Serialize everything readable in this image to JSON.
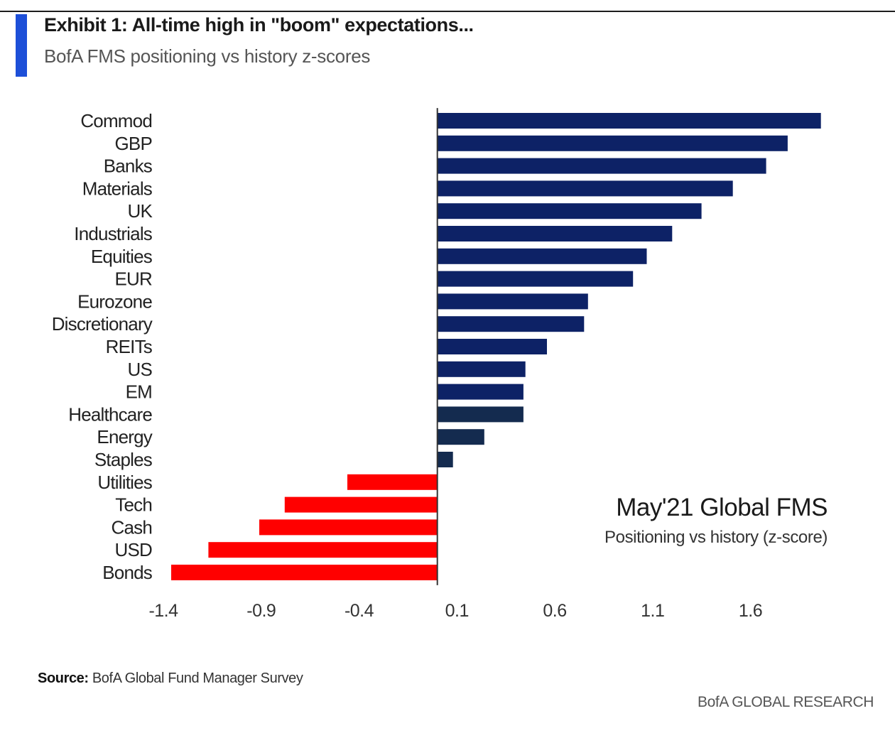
{
  "header": {
    "title": "Exhibit 1: All-time high in \"boom\" expectations...",
    "subtitle": "BofA FMS positioning vs history z-scores"
  },
  "annotation": {
    "title": "May'21 Global FMS",
    "subtitle": "Positioning vs history (z-score)"
  },
  "footer": {
    "source_label": "Source:",
    "source_text": "BofA Global Fund Manager Survey",
    "brand": "BofA GLOBAL RESEARCH"
  },
  "colors": {
    "positive": "#0d2266",
    "positive_dark": "#142b4f",
    "negative": "#ff0000",
    "accent": "#1d4fd8"
  },
  "chart_data": {
    "type": "bar",
    "orientation": "horizontal",
    "categories": [
      "Commod",
      "GBP",
      "Banks",
      "Materials",
      "UK",
      "Industrials",
      "Equities",
      "EUR",
      "Eurozone",
      "Discretionary",
      "REITs",
      "US",
      "EM",
      "Healthcare",
      "Energy",
      "Staples",
      "Utilities",
      "Tech",
      "Cash",
      "USD",
      "Bonds"
    ],
    "values": [
      1.96,
      1.79,
      1.68,
      1.51,
      1.35,
      1.2,
      1.07,
      1.0,
      0.77,
      0.75,
      0.56,
      0.45,
      0.44,
      0.44,
      0.24,
      0.08,
      -0.46,
      -0.78,
      -0.91,
      -1.17,
      -1.36
    ],
    "xticks": [
      "-1.4",
      "-0.9",
      "-0.4",
      "0.1",
      "0.6",
      "1.1",
      "1.6"
    ],
    "xlim": [
      -1.4,
      2.03
    ],
    "xlabel": "",
    "ylabel": "",
    "grid": false,
    "legend": "none"
  }
}
